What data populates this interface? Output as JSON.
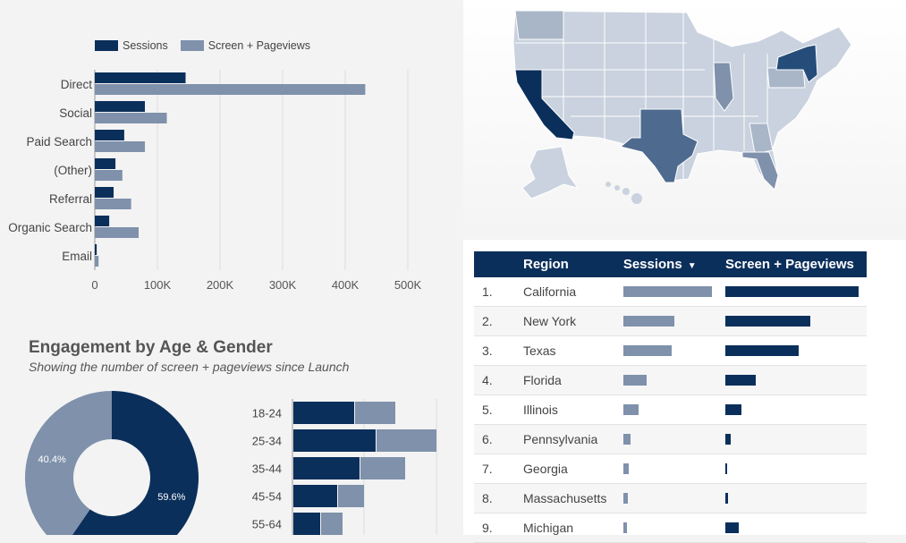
{
  "colors": {
    "sessions": "#0b2f5b",
    "pageviews": "#7f91ab",
    "donut_light": "#7f91ab",
    "donut_dark": "#0b2f5b"
  },
  "chart_data": [
    {
      "type": "bar",
      "orientation": "horizontal",
      "categories": [
        "Direct",
        "Social",
        "Paid Search",
        "(Other)",
        "Referral",
        "Organic Search",
        "Email"
      ],
      "series": [
        {
          "name": "Sessions",
          "values": [
            145000,
            80000,
            47000,
            33000,
            30000,
            23000,
            3000
          ]
        },
        {
          "name": "Screen + Pageviews",
          "values": [
            432000,
            115000,
            80000,
            44000,
            58000,
            70000,
            6000
          ]
        }
      ],
      "xlim": [
        0,
        500000
      ],
      "xticks": [
        "0",
        "100K",
        "200K",
        "300K",
        "400K",
        "500K"
      ],
      "legend": "top-left",
      "grid": true
    },
    {
      "type": "pie",
      "title": "Engagement by Age & Gender",
      "subtitle": "Showing the number of screen + pageviews since Launch",
      "slices": [
        {
          "value": 59.6,
          "label": "59.6%",
          "color": "#0b2f5b"
        },
        {
          "value": 40.4,
          "label": "40.4%",
          "color": "#7f91ab"
        }
      ]
    },
    {
      "type": "bar",
      "orientation": "horizontal",
      "stacked": true,
      "categories": [
        "18-24",
        "25-34",
        "35-44",
        "45-54",
        "55-64"
      ],
      "series": [
        {
          "values": [
            68,
            92,
            74,
            49,
            30
          ]
        },
        {
          "values": [
            45,
            67,
            50,
            29,
            24
          ]
        }
      ],
      "xlim": [
        0,
        170
      ]
    },
    {
      "type": "table",
      "columns": [
        "Region",
        "Sessions",
        "Screen + Pageviews"
      ],
      "sort_column": "Sessions",
      "rows": [
        {
          "rank": "1.",
          "region": "California",
          "sessions": 100,
          "pageviews": 100
        },
        {
          "rank": "2.",
          "region": "New York",
          "sessions": 58,
          "pageviews": 64
        },
        {
          "rank": "3.",
          "region": "Texas",
          "sessions": 55,
          "pageviews": 55
        },
        {
          "rank": "4.",
          "region": "Florida",
          "sessions": 26,
          "pageviews": 23
        },
        {
          "rank": "5.",
          "region": "Illinois",
          "sessions": 17,
          "pageviews": 12
        },
        {
          "rank": "6.",
          "region": "Pennsylvania",
          "sessions": 8,
          "pageviews": 4
        },
        {
          "rank": "7.",
          "region": "Georgia",
          "sessions": 6,
          "pageviews": 1.5
        },
        {
          "rank": "8.",
          "region": "Massachusetts",
          "sessions": 5,
          "pageviews": 2
        },
        {
          "rank": "9.",
          "region": "Michigan",
          "sessions": 4,
          "pageviews": 10
        }
      ]
    }
  ]
}
